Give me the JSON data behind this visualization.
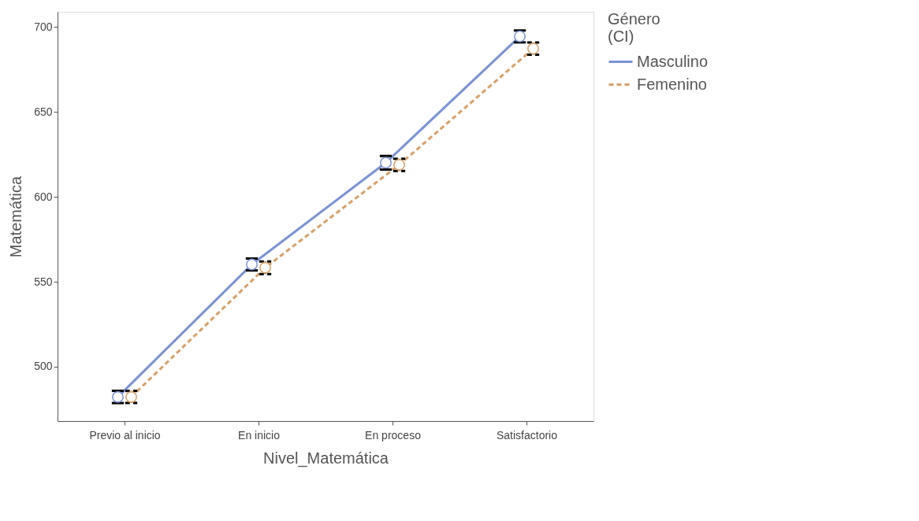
{
  "chart_data": {
    "type": "line",
    "xlabel": "Nivel_Matemática",
    "ylabel": "Matemática",
    "legend_title": "Género\n(CI)",
    "categories": [
      "Previo al inicio",
      "En inicio",
      "En proceso",
      "Satisfactorio"
    ],
    "series": [
      {
        "name": "Masculino",
        "color": "#7b93d6",
        "line_style": "solid",
        "values": [
          482.2,
          560.2,
          620.1,
          694.5
        ],
        "errors": [
          3.6,
          3.5,
          4,
          3.5
        ]
      },
      {
        "name": "Femenino",
        "color": "#d9a066",
        "line_style": "dashed",
        "values": [
          482.2,
          558.3,
          618.9,
          687.3
        ],
        "errors": [
          3.5,
          3.7,
          3.6,
          3.6
        ]
      }
    ],
    "ylim": [
      468,
      709
    ],
    "yticks": [
      500,
      550,
      600,
      650,
      700
    ],
    "grid": false,
    "legend": "right",
    "marker": "circle"
  }
}
